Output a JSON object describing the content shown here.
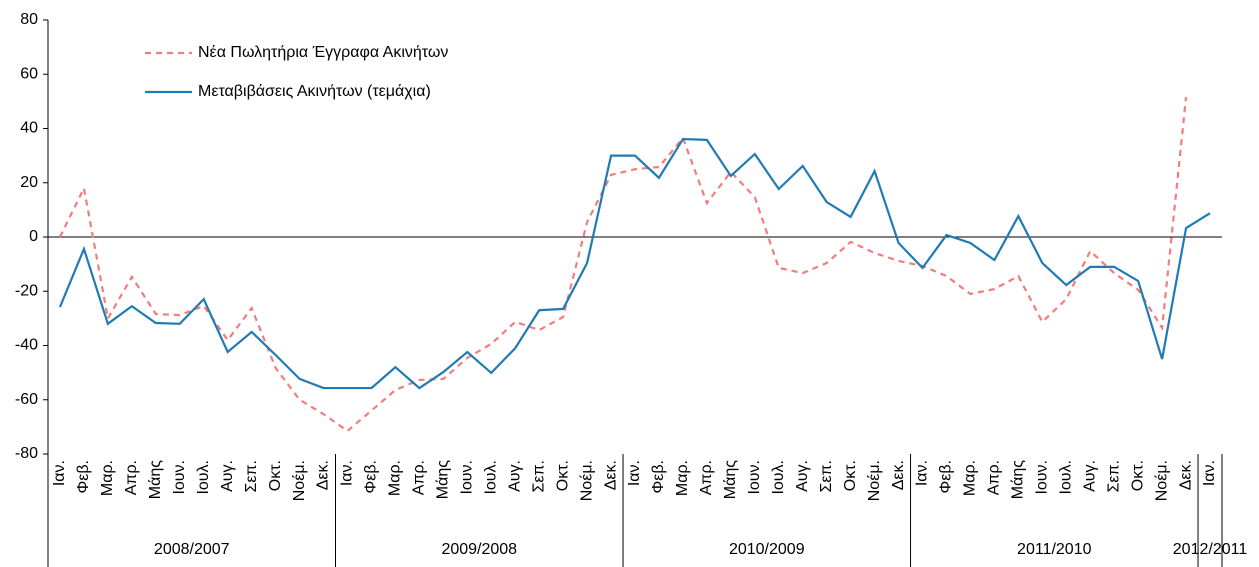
{
  "chart_data": {
    "type": "line",
    "categories": [
      "Ιαν.",
      "Φεβ.",
      "Μαρ.",
      "Απρ.",
      "Μάης",
      "Ιουν.",
      "Ιουλ.",
      "Αυγ.",
      "Σεπ.",
      "Οκτ.",
      "Νοέμ.",
      "Δεκ.",
      "Ιαν.",
      "Φεβ.",
      "Μαρ.",
      "Απρ.",
      "Μάης",
      "Ιουν.",
      "Ιουλ.",
      "Αυγ.",
      "Σεπ.",
      "Οκτ.",
      "Νοέμ.",
      "Δεκ.",
      "Ιαν.",
      "Φεβ.",
      "Μαρ.",
      "Απρ.",
      "Μάης",
      "Ιουν.",
      "Ιουλ.",
      "Αυγ.",
      "Σεπ.",
      "Οκτ.",
      "Νοέμ.",
      "Δεκ.",
      "Ιαν.",
      "Φεβ.",
      "Μαρ.",
      "Απρ.",
      "Μάης",
      "Ιουν.",
      "Ιουλ.",
      "Αυγ.",
      "Σεπ.",
      "Οκτ.",
      "Νοέμ.",
      "Δεκ.",
      "Ιαν."
    ],
    "groups": [
      {
        "label": "2008/2007",
        "size": 12
      },
      {
        "label": "2009/2008",
        "size": 12
      },
      {
        "label": "2010/2009",
        "size": 12
      },
      {
        "label": "2011/2010",
        "size": 12
      },
      {
        "label": "2012/2011",
        "size": 1
      }
    ],
    "series": [
      {
        "name": "Νέα Πωλητήρια Έγγραφα Ακινήτων",
        "color": "#f47c7c",
        "dashed": true,
        "values": [
          0,
          18,
          -30,
          -14.7,
          -28.4,
          -28.8,
          -25.4,
          -38,
          -26.2,
          -48.3,
          -60,
          -65.3,
          -71.5,
          -64,
          -56.4,
          -52.7,
          -52.3,
          -44.6,
          -39.4,
          -31.3,
          -34.3,
          -29.5,
          5.5,
          22.9,
          25,
          25.8,
          36.5,
          12.5,
          24,
          14.7,
          -11.4,
          -13.3,
          -9.6,
          -1.8,
          -5.9,
          -8.8,
          -10.7,
          -14.4,
          -21,
          -19.2,
          -14.4,
          -31.3,
          -22.9,
          -5.2,
          -13.3,
          -19.5,
          -33.5,
          51.6,
          null
        ]
      },
      {
        "name": "Μεταβιβάσεις Ακινήτων (τεμάχια)",
        "color": "#1f7ab5",
        "dashed": false,
        "values": [
          -25.8,
          -4.4,
          -32,
          -25.5,
          -31.7,
          -32,
          -22.9,
          -42.4,
          -35,
          -43.5,
          -52.3,
          -55.7,
          -55.7,
          -55.7,
          -48,
          -55.7,
          -49.8,
          -42.4,
          -50.1,
          -41,
          -27,
          -26.5,
          -9.6,
          30,
          30,
          21.8,
          36.1,
          35.8,
          22.5,
          30.6,
          17.7,
          26.2,
          12.9,
          7.4,
          24.3,
          -2.2,
          -11.4,
          0.7,
          -2.2,
          -8.5,
          7.7,
          -9.6,
          -17.7,
          -11,
          -11,
          -16.2,
          -45,
          3.3,
          8.8
        ]
      }
    ],
    "ylim": [
      -80,
      80
    ],
    "yticks": [
      -80,
      -60,
      -40,
      -20,
      0,
      20,
      40,
      60,
      80
    ],
    "legend": "upper left"
  }
}
